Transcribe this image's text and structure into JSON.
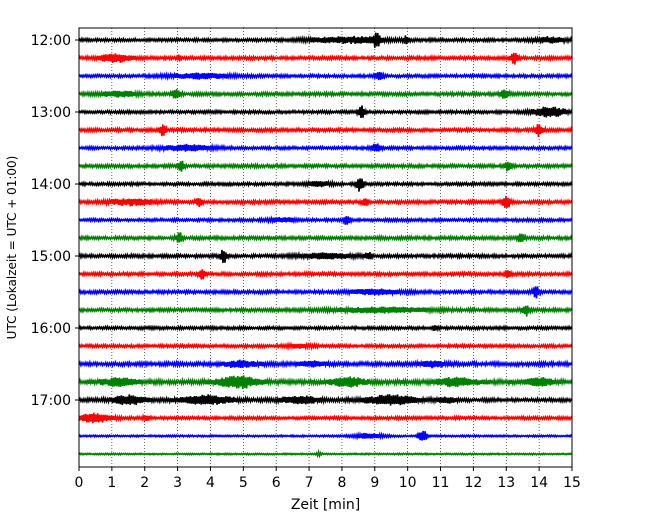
{
  "chart_data": {
    "type": "line",
    "subtype": "helicorder-seismogram",
    "title": "",
    "xlabel": "Zeit  [min]",
    "ylabel": "UTC (Lokalzeit = UTC + 01:00)",
    "xlim": [
      0,
      15
    ],
    "x_ticks": [
      "0",
      "1",
      "2",
      "3",
      "4",
      "5",
      "6",
      "7",
      "8",
      "9",
      "10",
      "11",
      "12",
      "13",
      "14",
      "15"
    ],
    "y_tick_labels": [
      "12:00",
      "13:00",
      "14:00",
      "15:00",
      "16:00",
      "17:00"
    ],
    "grid": "vertical dotted lines at each minute",
    "color_cycle": [
      "#000000",
      "#ff0000",
      "#0000ff",
      "#008000"
    ],
    "rows": [
      {
        "start": "12:00",
        "noise": 1.0,
        "events": [
          [
            8.2,
            1.2,
            2.5
          ],
          [
            9.05,
            0.1,
            6.0
          ],
          [
            9.95,
            0.08,
            3.0
          ],
          [
            14.3,
            0.5,
            2.2
          ]
        ]
      },
      {
        "start": "12:15",
        "noise": 1.1,
        "events": [
          [
            1.1,
            0.5,
            3.0
          ],
          [
            3.05,
            0.06,
            2.5
          ],
          [
            13.25,
            0.1,
            5.0
          ]
        ]
      },
      {
        "start": "12:30",
        "noise": 1.0,
        "events": [
          [
            3.7,
            1.0,
            2.0
          ],
          [
            9.15,
            0.12,
            3.5
          ]
        ]
      },
      {
        "start": "12:45",
        "noise": 1.1,
        "events": [
          [
            1.2,
            0.6,
            2.0
          ],
          [
            2.95,
            0.12,
            4.0
          ],
          [
            12.95,
            0.12,
            3.5
          ]
        ]
      },
      {
        "start": "13:00",
        "noise": 1.0,
        "events": [
          [
            8.6,
            0.1,
            5.0
          ],
          [
            14.3,
            0.5,
            4.0
          ]
        ]
      },
      {
        "start": "13:15",
        "noise": 1.1,
        "events": [
          [
            2.55,
            0.1,
            4.5
          ],
          [
            14.0,
            0.12,
            5.0
          ]
        ]
      },
      {
        "start": "13:30",
        "noise": 1.0,
        "events": [
          [
            3.3,
            0.8,
            2.2
          ],
          [
            9.05,
            0.15,
            3.5
          ]
        ]
      },
      {
        "start": "13:45",
        "noise": 1.1,
        "events": [
          [
            3.1,
            0.1,
            4.5
          ],
          [
            13.05,
            0.1,
            4.0
          ]
        ]
      },
      {
        "start": "14:00",
        "noise": 1.0,
        "events": [
          [
            7.3,
            0.4,
            2.0
          ],
          [
            8.55,
            0.1,
            6.0
          ]
        ]
      },
      {
        "start": "14:15",
        "noise": 1.1,
        "events": [
          [
            1.6,
            0.7,
            2.5
          ],
          [
            3.65,
            0.1,
            4.0
          ],
          [
            8.7,
            0.1,
            3.0
          ],
          [
            13.0,
            0.12,
            5.0
          ]
        ]
      },
      {
        "start": "14:30",
        "noise": 1.0,
        "events": [
          [
            6.2,
            0.4,
            1.8
          ],
          [
            8.15,
            0.1,
            4.0
          ]
        ]
      },
      {
        "start": "14:45",
        "noise": 1.1,
        "events": [
          [
            3.05,
            0.1,
            4.5
          ],
          [
            13.45,
            0.1,
            3.5
          ]
        ]
      },
      {
        "start": "15:00",
        "noise": 1.1,
        "events": [
          [
            4.4,
            0.1,
            6.0
          ],
          [
            7.5,
            0.8,
            2.0
          ],
          [
            8.8,
            0.1,
            3.0
          ]
        ]
      },
      {
        "start": "15:15",
        "noise": 1.1,
        "events": [
          [
            3.75,
            0.1,
            4.5
          ],
          [
            13.05,
            0.1,
            3.0
          ]
        ]
      },
      {
        "start": "15:30",
        "noise": 1.1,
        "events": [
          [
            9.0,
            0.8,
            1.8
          ],
          [
            13.9,
            0.1,
            5.0
          ]
        ]
      },
      {
        "start": "15:45",
        "noise": 1.1,
        "events": [
          [
            9.2,
            1.5,
            2.0
          ],
          [
            13.6,
            0.1,
            5.0
          ]
        ]
      },
      {
        "start": "16:00",
        "noise": 1.0,
        "events": [
          [
            10.85,
            0.08,
            2.0
          ]
        ]
      },
      {
        "start": "16:15",
        "noise": 1.0,
        "events": [
          [
            6.7,
            0.4,
            1.5
          ]
        ]
      },
      {
        "start": "16:30",
        "noise": 1.3,
        "events": [
          [
            4.9,
            0.5,
            2.5
          ],
          [
            7.1,
            0.4,
            2.0
          ],
          [
            10.8,
            0.4,
            2.2
          ]
        ]
      },
      {
        "start": "16:45",
        "noise": 1.5,
        "events": [
          [
            1.2,
            0.5,
            3.0
          ],
          [
            4.85,
            0.6,
            4.5
          ],
          [
            8.2,
            0.5,
            3.5
          ],
          [
            11.5,
            0.6,
            3.0
          ],
          [
            14.0,
            0.4,
            3.0
          ]
        ]
      },
      {
        "start": "17:00",
        "noise": 1.2,
        "events": [
          [
            1.5,
            0.5,
            3.5
          ],
          [
            3.9,
            0.8,
            3.5
          ],
          [
            6.7,
            0.6,
            3.0
          ],
          [
            9.5,
            0.8,
            3.8
          ],
          [
            11.2,
            0.3,
            2.0
          ]
        ]
      },
      {
        "start": "17:15",
        "noise": 1.0,
        "events": [
          [
            0.5,
            0.5,
            3.5
          ],
          [
            2.05,
            0.1,
            2.0
          ]
        ]
      },
      {
        "start": "17:30",
        "noise": 0.6,
        "events": [
          [
            8.8,
            0.5,
            2.0
          ],
          [
            10.45,
            0.12,
            5.5
          ]
        ]
      },
      {
        "start": "17:45",
        "noise": 0.5,
        "events": [
          [
            7.3,
            0.06,
            2.0
          ]
        ]
      }
    ]
  }
}
